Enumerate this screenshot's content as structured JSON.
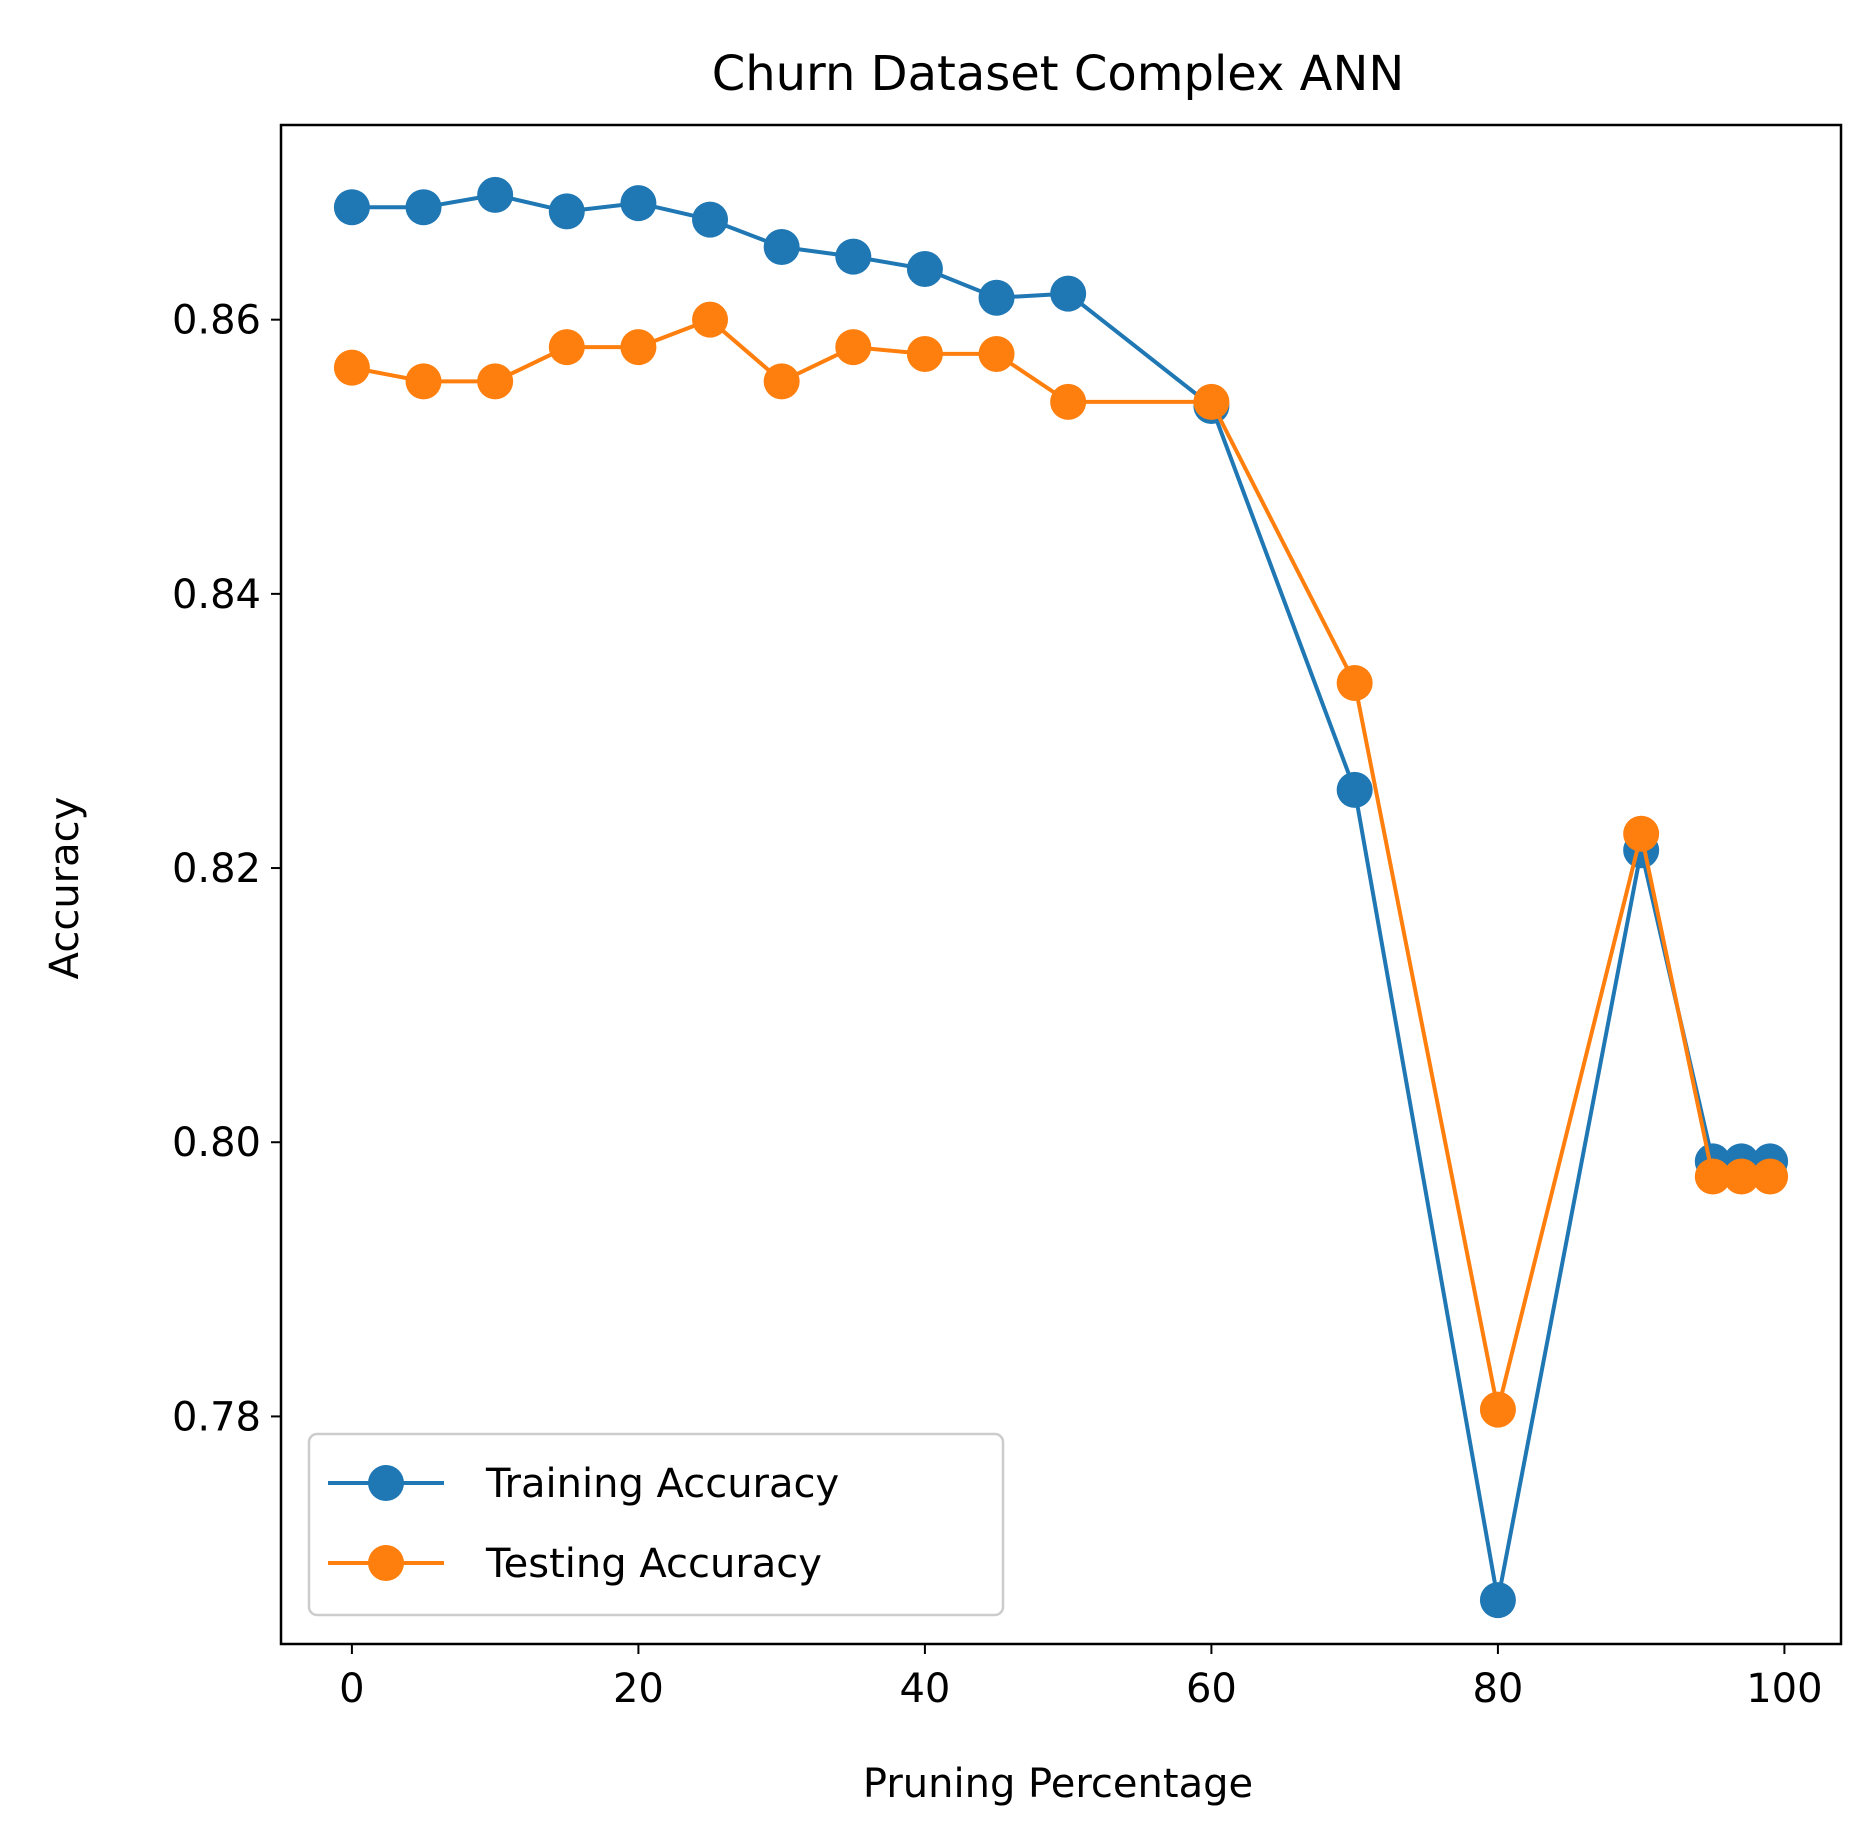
{
  "chart_data": {
    "type": "line",
    "title": "Churn Dataset Complex ANN",
    "xlabel": "Pruning Percentage",
    "ylabel": "Accuracy",
    "xlim": [
      -4.95,
      103.95
    ],
    "ylim": [
      0.7634,
      0.8742
    ],
    "xticks": [
      0,
      20,
      40,
      60,
      80,
      100
    ],
    "xtick_labels": [
      "0",
      "20",
      "40",
      "60",
      "80",
      "100"
    ],
    "yticks": [
      0.78,
      0.8,
      0.82,
      0.84,
      0.86
    ],
    "ytick_labels": [
      "0.78",
      "0.80",
      "0.82",
      "0.84",
      "0.86"
    ],
    "grid": false,
    "legend_position": "lower-left",
    "x": [
      0,
      5,
      10,
      15,
      20,
      25,
      30,
      35,
      40,
      45,
      50,
      60,
      70,
      80,
      90,
      95,
      97,
      99
    ],
    "series": [
      {
        "name": "Training Accuracy",
        "color": "#1f77b4",
        "marker": "circle",
        "values": [
          0.8682,
          0.8682,
          0.8691,
          0.8679,
          0.8685,
          0.8673,
          0.8653,
          0.8646,
          0.8637,
          0.8616,
          0.8619,
          0.8537,
          0.8257,
          0.7666,
          0.8213,
          0.7986,
          0.7986,
          0.7986
        ]
      },
      {
        "name": "Testing Accuracy",
        "color": "#ff7f0e",
        "marker": "circle",
        "values": [
          0.8565,
          0.8555,
          0.8555,
          0.858,
          0.858,
          0.86,
          0.8555,
          0.858,
          0.8575,
          0.8575,
          0.854,
          0.854,
          0.8335,
          0.7805,
          0.8225,
          0.7975,
          0.7975,
          0.7975
        ]
      }
    ]
  }
}
